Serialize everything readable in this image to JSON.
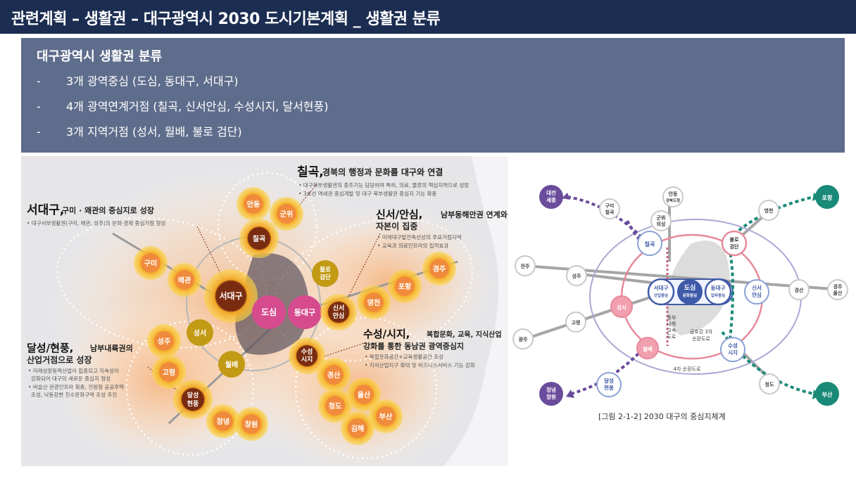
{
  "header": {
    "title": "관련계획 – 생활권 – 대구광역시 2030 도시기본계획 _ 생활권 분류"
  },
  "summary": {
    "heading": "대구광역시 생활권 분류",
    "items": [
      {
        "dash": "-",
        "text": "3개 광역중심 (도심, 동대구, 서대구)"
      },
      {
        "dash": "-",
        "text": "4개 광역연계거점 (칠곡, 신서안심, 수성시지, 달서현풍)"
      },
      {
        "dash": "-",
        "text": "3개 지역거점 (성서, 월배, 불로 검단)"
      }
    ]
  },
  "left_map": {
    "annotations": {
      "chilgok_title": "칠곡,",
      "chilgok_sub": "경북의 행정과 문화를 대구와 연결",
      "chilgok_d1": "• 대구북부생활권의 중추기능 담당하며 특허, 의료, 물류의 핵심지역으로 성장",
      "chilgok_d2": "• 3호선 역세권 중심개발 및 대구 북부생활권 중심지 기능 확충",
      "seodaegu_title": "서대구,",
      "seodaegu_sub": "구미 · 왜관의 중심지로 성장",
      "seodaegu_d1": "• 대구서부생활권(구미, 왜관, 성주)의 문화·경제 중심거점 형성",
      "sinseo_title": "신서/안심,",
      "sinseo_sub": "남부동해안권 연계와",
      "sinseo_sub2": "자본이 집중",
      "sinseo_d1": "• 미래대구발전축선상의 주요거점지역",
      "sinseo_d2": "• 교육과 의료인프라의 집적효과",
      "suseong_title": "수성/시지,",
      "suseong_sub": "복합문화, 교육, 지식산업",
      "suseong_sub2": "강화를 통한 동남권 광역중심지",
      "suseong_d1": "• 복합문화공간+교육생활공간 조성",
      "suseong_d2": "• 지식산업지구 확대 및 비즈니스서비스 기능 강화",
      "dalseong_title": "달성/현풍,",
      "dalseong_sub": "남부내륙권의",
      "dalseong_sub2": "산업거점으로 성장",
      "dalseong_d1": "• 미래성장동력산업이 집중되고 지속성이",
      "dalseong_d1b": "강화되어 대구의 새로운 중심지 형성",
      "dalseong_d2": "• 비슬산 관광인프라 확충, 전원형 공공주택",
      "dalseong_d2b": "조성, 낙동강변 친수문화구역 조성 추진"
    },
    "nodes": {
      "andong": "안동",
      "gunwi": "군위",
      "chilgok": "칠곡",
      "gumi": "구미",
      "waegwan": "왜관",
      "seodaegu": "서대구",
      "dosim": "도심",
      "dongdaegu": "동대구",
      "bullo1": "불로",
      "bullo2": "검단",
      "sinseo1": "신서",
      "sinseo2": "안심",
      "yeongcheon": "영천",
      "pohang": "포항",
      "gyeongju": "경주",
      "seongju": "성주",
      "seongseo": "성서",
      "goryeong": "고령",
      "wolbae": "월배",
      "dal1": "달성",
      "dal2": "현풍",
      "changnyeong": "창녕",
      "changwon": "창원",
      "suseong1": "수성",
      "suseong2": "시지",
      "gyeongsan": "경산",
      "ulsan": "울산",
      "cheongdo": "청도",
      "busan": "부산",
      "gimhae": "김해"
    }
  },
  "right_map": {
    "caption": "[그림 2-1-2]  2030 대구의 중심지체계",
    "nodes": {
      "daejeon1": "대전",
      "daejeon2": "세종",
      "gumi1": "구미",
      "gumi2": "칠곡",
      "andong1": "안동",
      "andong2": "경북도청",
      "gunwi1": "군위",
      "gunwi2": "의성",
      "pohang": "포항",
      "yeongcheon": "영천",
      "chilgok": "칠곡",
      "bullo1": "불로",
      "bullo2": "검단",
      "jeonju": "전주",
      "seongju": "성주",
      "seodaegu1": "서대구",
      "seodaegu2": "산업중심",
      "dosim1": "도심",
      "dosim2": "문화중심",
      "dongdaegu1": "동대구",
      "dongdaegu2": "업무중심",
      "sinseo1": "신서",
      "sinseo2": "안심",
      "gyeongsan_r": "경산",
      "gyeongju1": "경주",
      "gyeongju2": "울산",
      "seongseo": "성서",
      "goryeong": "고령",
      "gwangju": "광주",
      "wolbae": "월배",
      "suseong1": "수성",
      "suseong2": "시지",
      "dalseong1": "달성",
      "dalseong2": "현풍",
      "changnyeong1": "창녕",
      "changnyeong2": "창원",
      "cheongdo": "청도",
      "busan": "부산"
    },
    "labels": {
      "jungbu1": "중부",
      "jungbu2": "내륙",
      "jungbu3": "고속",
      "jungbu4": "도로",
      "geumho1": "금호강 3차",
      "geumho2": "순환도로",
      "ring4": "4차 순환도로"
    },
    "colors": {
      "purple": "#6a4c9c",
      "teal": "#1a8a78",
      "pink": "#e7899a",
      "navy": "#3f5aa8"
    }
  }
}
